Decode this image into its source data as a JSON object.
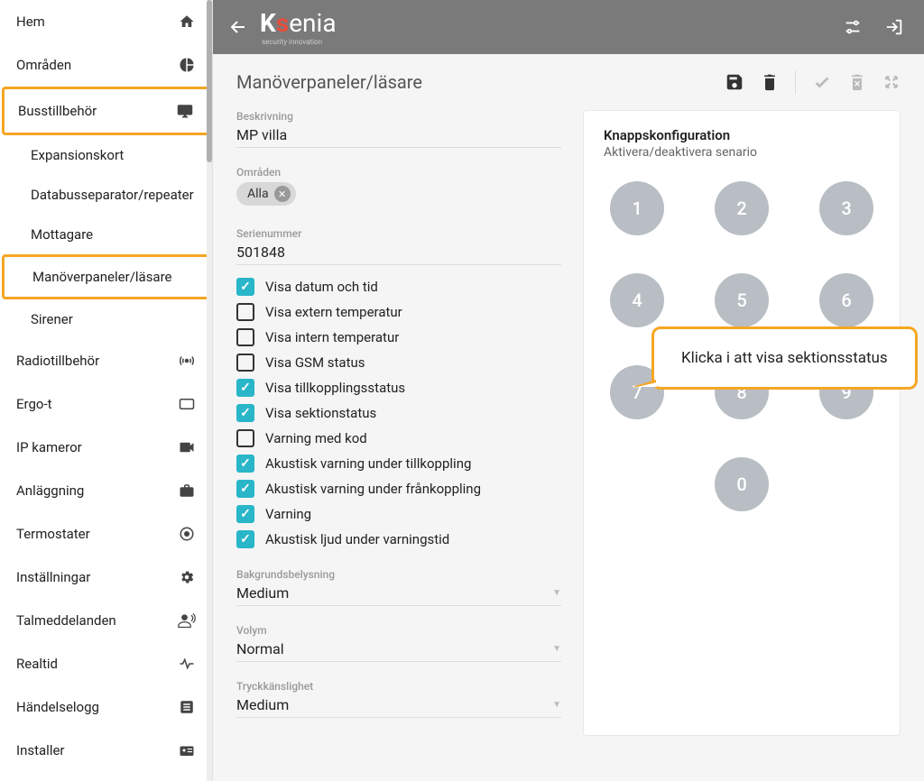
{
  "sidebar": {
    "items": [
      {
        "label": "Hem",
        "icon": "home"
      },
      {
        "label": "Områden",
        "icon": "pie"
      },
      {
        "label": "Busstillbehör",
        "icon": "monitor",
        "highlighted": true
      },
      {
        "label": "Radiotillbehör",
        "icon": "broadcast"
      },
      {
        "label": "Ergo-t",
        "icon": "tablet"
      },
      {
        "label": "IP kameror",
        "icon": "camera"
      },
      {
        "label": "Anläggning",
        "icon": "briefcase"
      },
      {
        "label": "Termostater",
        "icon": "thermostat"
      },
      {
        "label": "Inställningar",
        "icon": "gear"
      },
      {
        "label": "Talmeddelanden",
        "icon": "voice"
      },
      {
        "label": "Realtid",
        "icon": "pulse"
      },
      {
        "label": "Händelselogg",
        "icon": "log"
      },
      {
        "label": "Installer",
        "icon": "badge"
      }
    ],
    "sub": {
      "expansionskort": "Expansionskort",
      "databuss": "Databusseparator/repeater",
      "mottagare": "Mottagare",
      "manoverpaneler": "Manöverpaneler/läsare",
      "sirener": "Sirener"
    }
  },
  "logo": {
    "k": "K",
    "s": "s",
    "rest": "enia",
    "sub": "security innovation"
  },
  "page": {
    "title": "Manöverpaneler/läsare"
  },
  "form": {
    "beskrivning_label": "Beskrivning",
    "beskrivning_value": "MP villa",
    "omraden_label": "Områden",
    "omraden_chip": "Alla",
    "serienummer_label": "Serienummer",
    "serienummer_value": "501848",
    "checks": [
      {
        "label": "Visa datum och tid",
        "checked": true
      },
      {
        "label": "Visa extern temperatur",
        "checked": false
      },
      {
        "label": "Visa intern temperatur",
        "checked": false
      },
      {
        "label": "Visa GSM status",
        "checked": false
      },
      {
        "label": "Visa tillkopplingsstatus",
        "checked": true
      },
      {
        "label": "Visa sektionstatus",
        "checked": true
      },
      {
        "label": "Varning med kod",
        "checked": false
      },
      {
        "label": "Akustisk varning under tillkoppling",
        "checked": true
      },
      {
        "label": "Akustisk varning under frånkoppling",
        "checked": true
      },
      {
        "label": "Varning",
        "checked": true
      },
      {
        "label": "Akustisk ljud under varningstid",
        "checked": true
      }
    ],
    "bakgrund_label": "Bakgrundsbelysning",
    "bakgrund_value": "Medium",
    "volym_label": "Volym",
    "volym_value": "Normal",
    "tryck_label": "Tryckkänslighet",
    "tryck_value": "Medium"
  },
  "keypad": {
    "title": "Knappskonfiguration",
    "sub": "Aktivera/deaktivera senario",
    "keys": [
      "1",
      "2",
      "3",
      "4",
      "5",
      "6",
      "7",
      "8",
      "9",
      "0"
    ]
  },
  "callout": {
    "text": "Klicka i att visa sektionsstatus"
  },
  "colors": {
    "accent": "#29b6c9",
    "highlight": "#f5a623",
    "topbar": "#7a7a7a",
    "key": "#b8bec4"
  }
}
